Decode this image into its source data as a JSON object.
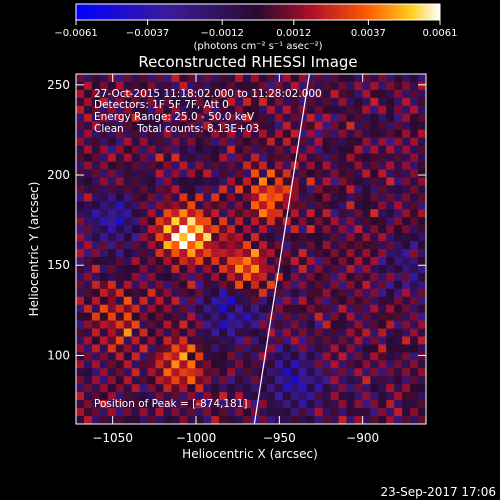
{
  "chart_data": {
    "type": "heatmap",
    "title": "Reconstructed RHESSI Image",
    "xlabel": "Heliocentric X (arcsec)",
    "ylabel": "Heliocentric Y (arcsec)",
    "xlim": [
      -1072,
      -862
    ],
    "ylim": [
      62,
      256
    ],
    "x_ticks": [
      -1050,
      -1000,
      -950,
      -900
    ],
    "x_tick_labels": [
      "−1050",
      "−1000",
      "−950",
      "−900"
    ],
    "y_ticks": [
      100,
      150,
      200,
      250
    ],
    "y_tick_labels": [
      "100",
      "150",
      "200",
      "250"
    ],
    "grid": false,
    "colorbar": {
      "min": -0.0061,
      "max": 0.0061,
      "ticks": [
        -0.0061,
        -0.0037,
        -0.0012,
        0.0012,
        0.0037,
        0.0061
      ],
      "tick_labels": [
        "−0.0061",
        "−0.0037",
        "−0.0012",
        "0.0012",
        "0.0037",
        "0.0061"
      ],
      "unit_label": "(photons cm⁻² s⁻¹ asec⁻²)"
    },
    "annotations": {
      "time_range": "27-Oct-2015 11:18:02.000 to 11:28:02.000",
      "detectors": "Detectors: 1F 5F 7F, Att 0",
      "energy_range": "Energy Range: 25.0 - 50.0 keV",
      "clean_counts": "Clean    Total counts: 8.13E+03",
      "peak_position": "Position of Peak = [-874,181]"
    },
    "limb_line": {
      "points": [
        [
          -965,
          62
        ],
        [
          -932,
          256
        ]
      ]
    },
    "sources": [
      {
        "x": -1006,
        "y": 167,
        "intensity": 0.0058,
        "sigma": 11
      },
      {
        "x": -972,
        "y": 147,
        "intensity": 0.0042,
        "sigma": 11
      },
      {
        "x": -955,
        "y": 188,
        "intensity": 0.0032,
        "sigma": 10
      },
      {
        "x": -1010,
        "y": 95,
        "intensity": 0.0035,
        "sigma": 9
      },
      {
        "x": -1045,
        "y": 120,
        "intensity": 0.0025,
        "sigma": 10
      },
      {
        "x": -980,
        "y": 128,
        "intensity": -0.0035,
        "sigma": 12
      },
      {
        "x": -940,
        "y": 85,
        "intensity": -0.003,
        "sigma": 13
      },
      {
        "x": -1050,
        "y": 175,
        "intensity": -0.0028,
        "sigma": 10
      },
      {
        "x": -875,
        "y": 150,
        "intensity": -0.002,
        "sigma": 10
      }
    ]
  },
  "footer": {
    "timestamp": "23-Sep-2017 17:06"
  }
}
